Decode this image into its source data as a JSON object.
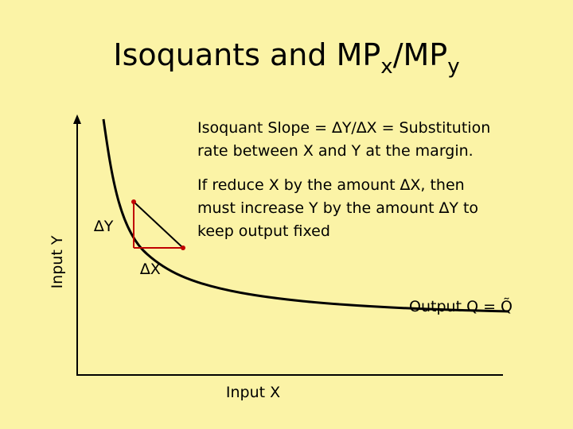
{
  "title": {
    "main": "Isoquants and MP",
    "sub1": "x",
    "mid": "/MP",
    "sub2": "y"
  },
  "slope_note": {
    "lines": [
      "Isoquant Slope = ∆Y/∆X = Substitution",
      "rate between X and Y at the margin."
    ]
  },
  "reduce_note": {
    "lines": [
      "If reduce X by the amount ∆X, then",
      "must increase Y by the amount ∆Y to",
      "keep output fixed"
    ]
  },
  "delta_y": "∆Y",
  "delta_x": "∆X",
  "curve_label": "Output Q = Q̃",
  "axes": {
    "y_label": "Input Y",
    "x_label": "Input X"
  }
}
